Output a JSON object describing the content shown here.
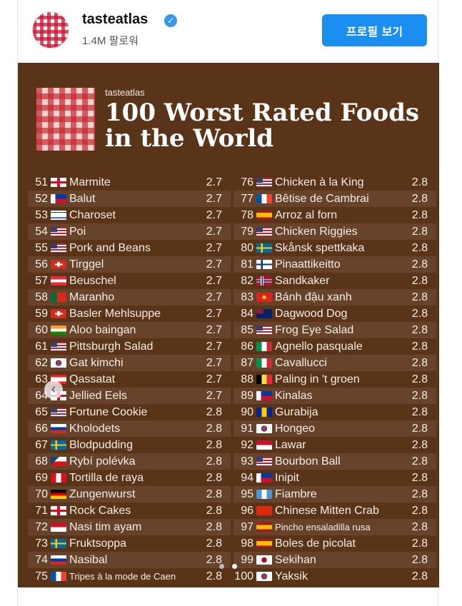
{
  "header": {
    "username": "tasteatlas",
    "verified_icon": "verified-badge",
    "followers": "1.4M 팔로워",
    "profile_button": "프로필 보기",
    "accent_color": "#1a8ff1"
  },
  "poster": {
    "brand": "tasteatlas",
    "title": "100 Worst Rated Foods in the World",
    "background_color": "#5a3418"
  },
  "list_left": [
    {
      "rank": "51",
      "flag": "England",
      "name": "Marmite",
      "score": "2.7"
    },
    {
      "rank": "52",
      "flag": "Philippines",
      "name": "Balut",
      "score": "2.7"
    },
    {
      "rank": "53",
      "flag": "Israel",
      "name": "Charoset",
      "score": "2.7"
    },
    {
      "rank": "54",
      "flag": "USA",
      "name": "Poi",
      "score": "2.7"
    },
    {
      "rank": "55",
      "flag": "USA",
      "name": "Pork and Beans",
      "score": "2.7"
    },
    {
      "rank": "56",
      "flag": "Switzerland",
      "name": "Tirggel",
      "score": "2.7"
    },
    {
      "rank": "57",
      "flag": "Austria",
      "name": "Beuschel",
      "score": "2.7"
    },
    {
      "rank": "58",
      "flag": "Portugal",
      "name": "Maranho",
      "score": "2.7"
    },
    {
      "rank": "59",
      "flag": "Switzerland",
      "name": "Basler Mehlsuppe",
      "score": "2.7"
    },
    {
      "rank": "60",
      "flag": "India",
      "name": "Aloo baingan",
      "score": "2.7"
    },
    {
      "rank": "61",
      "flag": "USA",
      "name": "Pittsburgh Salad",
      "score": "2.7"
    },
    {
      "rank": "62",
      "flag": "South Korea",
      "name": "Gat kimchi",
      "score": "2.7"
    },
    {
      "rank": "63",
      "flag": "Lebanon",
      "name": "Qassatat",
      "score": "2.7"
    },
    {
      "rank": "64",
      "flag": "England",
      "name": "Jellied Eels",
      "score": "2.7"
    },
    {
      "rank": "65",
      "flag": "USA",
      "name": "Fortune Cookie",
      "score": "2.8"
    },
    {
      "rank": "66",
      "flag": "Russia",
      "name": "Kholodets",
      "score": "2.8"
    },
    {
      "rank": "67",
      "flag": "Sweden",
      "name": "Blodpudding",
      "score": "2.8"
    },
    {
      "rank": "68",
      "flag": "Czech Republic",
      "name": "Rybí polévka",
      "score": "2.8"
    },
    {
      "rank": "69",
      "flag": "Peru",
      "name": "Tortilla de raya",
      "score": "2.8"
    },
    {
      "rank": "70",
      "flag": "Germany",
      "name": "Zungenwurst",
      "score": "2.8"
    },
    {
      "rank": "71",
      "flag": "England",
      "name": "Rock Cakes",
      "score": "2.8"
    },
    {
      "rank": "72",
      "flag": "Indonesia",
      "name": "Nasi tim ayam",
      "score": "2.8"
    },
    {
      "rank": "73",
      "flag": "Sweden",
      "name": "Fruktsoppa",
      "score": "2.8"
    },
    {
      "rank": "74",
      "flag": "Russia",
      "name": "Nasibal",
      "score": "2.8"
    },
    {
      "rank": "75",
      "flag": "France",
      "name": "Tripes à la mode de Caen",
      "score": "2.8"
    }
  ],
  "list_right": [
    {
      "rank": "76",
      "flag": "USA",
      "name": "Chicken à la King",
      "score": "2.8"
    },
    {
      "rank": "77",
      "flag": "France",
      "name": "Bêtise de Cambrai",
      "score": "2.8"
    },
    {
      "rank": "78",
      "flag": "Spain",
      "name": "Arroz al forn",
      "score": "2.8"
    },
    {
      "rank": "79",
      "flag": "USA",
      "name": "Chicken Riggies",
      "score": "2.8"
    },
    {
      "rank": "80",
      "flag": "Sweden",
      "name": "Skånsk spettkaka",
      "score": "2.8"
    },
    {
      "rank": "81",
      "flag": "Finland",
      "name": "Pinaattikeitto",
      "score": "2.8"
    },
    {
      "rank": "82",
      "flag": "Norway",
      "name": "Sandkaker",
      "score": "2.8"
    },
    {
      "rank": "83",
      "flag": "Vietnam",
      "name": "Bánh đậu xanh",
      "score": "2.8"
    },
    {
      "rank": "84",
      "flag": "Australia",
      "name": "Dagwood Dog",
      "score": "2.8"
    },
    {
      "rank": "85",
      "flag": "USA",
      "name": "Frog Eye Salad",
      "score": "2.8"
    },
    {
      "rank": "86",
      "flag": "Italy",
      "name": "Agnello pasquale",
      "score": "2.8"
    },
    {
      "rank": "87",
      "flag": "Italy",
      "name": "Cavallucci",
      "score": "2.8"
    },
    {
      "rank": "88",
      "flag": "Belgium",
      "name": "Paling in 't groen",
      "score": "2.8"
    },
    {
      "rank": "89",
      "flag": "Philippines",
      "name": "Kinalas",
      "score": "2.8"
    },
    {
      "rank": "90",
      "flag": "Bosnia",
      "name": "Gurabija",
      "score": "2.8"
    },
    {
      "rank": "91",
      "flag": "South Korea",
      "name": "Hongeo",
      "score": "2.8"
    },
    {
      "rank": "92",
      "flag": "Indonesia",
      "name": "Lawar",
      "score": "2.8"
    },
    {
      "rank": "93",
      "flag": "USA",
      "name": "Bourbon Ball",
      "score": "2.8"
    },
    {
      "rank": "94",
      "flag": "Philippines",
      "name": "Inipit",
      "score": "2.8"
    },
    {
      "rank": "95",
      "flag": "Guatemala",
      "name": "Fiambre",
      "score": "2.8"
    },
    {
      "rank": "96",
      "flag": "China",
      "name": "Chinese Mitten Crab",
      "score": "2.8"
    },
    {
      "rank": "97",
      "flag": "Spain",
      "name": "Pincho ensaladilla rusa",
      "score": "2.8"
    },
    {
      "rank": "98",
      "flag": "Spain",
      "name": "Boles de picolat",
      "score": "2.8"
    },
    {
      "rank": "99",
      "flag": "Japan",
      "name": "Sekihan",
      "score": "2.8"
    },
    {
      "rank": "100",
      "flag": "South Korea",
      "name": "Yaksik",
      "score": "2.8"
    }
  ],
  "carousel": {
    "prev_icon": "chevron-left-icon",
    "page_count": 2,
    "active_page": 2
  }
}
